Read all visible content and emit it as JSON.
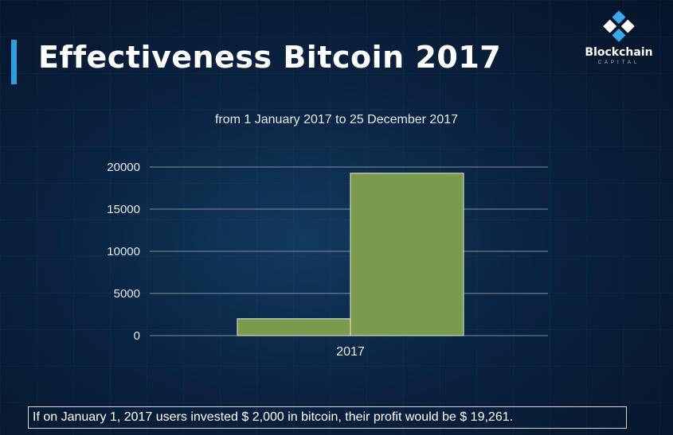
{
  "header": {
    "title": "Effectiveness Bitcoin 2017",
    "logo_text": "Blockchain",
    "logo_subtext": "CAPITAL"
  },
  "chart_data": {
    "type": "bar",
    "subtitle": "from 1 January 2017 to 25 December 2017",
    "categories": [
      "2017"
    ],
    "series": [
      {
        "values": [
          2000
        ]
      },
      {
        "values": [
          19261
        ]
      }
    ],
    "ylim": [
      0,
      20000
    ],
    "yticks": [
      0,
      5000,
      10000,
      15000,
      20000
    ],
    "grid": true,
    "bar_color": "#7a9a4d"
  },
  "footer": {
    "note": "If on January 1, 2017 users invested $ 2,000 in bitcoin, their profit would be $ 19,261."
  },
  "colors": {
    "accent": "#2f9fe0",
    "bar": "#7a9a4d"
  }
}
